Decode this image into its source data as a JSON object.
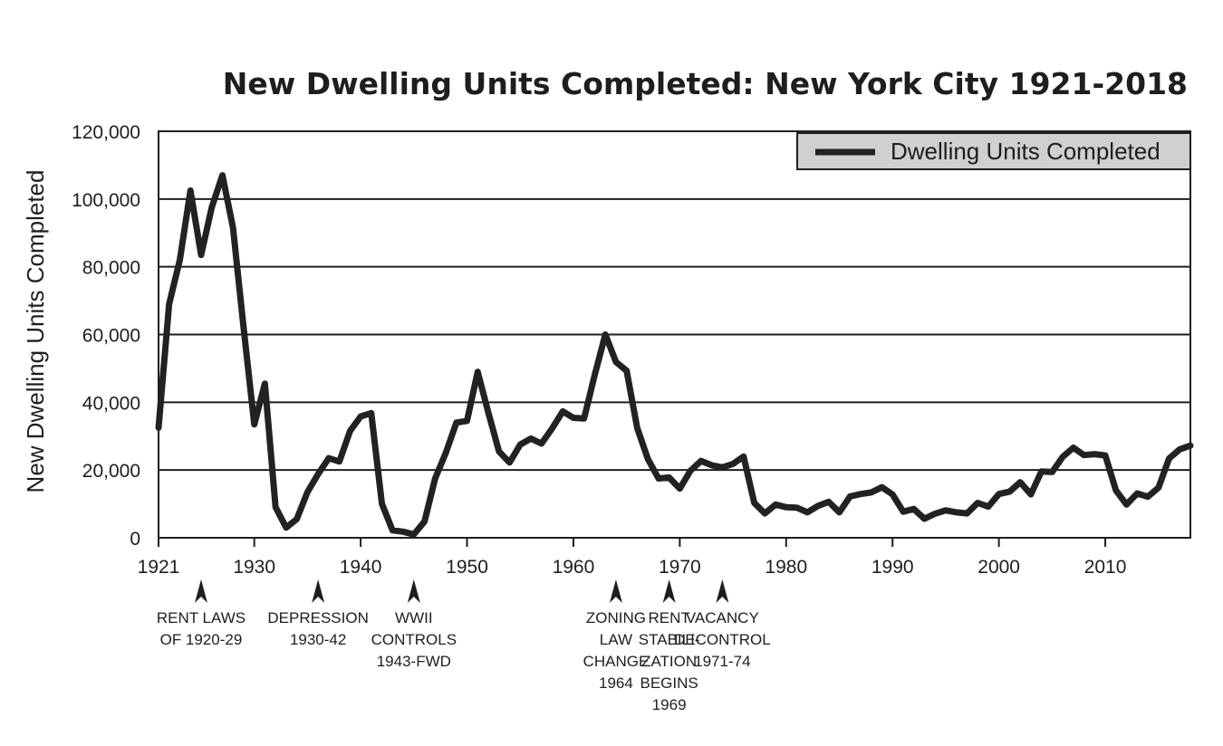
{
  "chart_data": {
    "type": "line",
    "title": "New Dwelling Units Completed: New York City 1921-2018",
    "xlabel": "",
    "ylabel": "New Dwelling Units Completed",
    "xlim": [
      1921,
      2018
    ],
    "ylim": [
      0,
      120000
    ],
    "x_ticks": [
      1921,
      1930,
      1940,
      1950,
      1960,
      1970,
      1980,
      1990,
      2000,
      2010
    ],
    "y_ticks": [
      {
        "value": 0,
        "label": "0"
      },
      {
        "value": 20000,
        "label": "20,000"
      },
      {
        "value": 40000,
        "label": "40,000"
      },
      {
        "value": 60000,
        "label": "60,000"
      },
      {
        "value": 80000,
        "label": "80,000"
      },
      {
        "value": 100000,
        "label": "100,000"
      },
      {
        "value": 120000,
        "label": "120,000"
      }
    ],
    "grid": "horizontal",
    "legend_position": "top-right",
    "line_color": "#222222",
    "series": [
      {
        "name": "Dwelling Units Completed",
        "x": [
          1921,
          1922,
          1923,
          1924,
          1925,
          1926,
          1927,
          1928,
          1929,
          1930,
          1931,
          1932,
          1933,
          1934,
          1935,
          1936,
          1937,
          1938,
          1939,
          1940,
          1941,
          1942,
          1943,
          1944,
          1945,
          1946,
          1947,
          1948,
          1949,
          1950,
          1951,
          1952,
          1953,
          1954,
          1955,
          1956,
          1957,
          1958,
          1959,
          1960,
          1961,
          1962,
          1963,
          1964,
          1965,
          1966,
          1967,
          1968,
          1969,
          1970,
          1971,
          1972,
          1973,
          1974,
          1975,
          1976,
          1977,
          1978,
          1979,
          1980,
          1981,
          1982,
          1983,
          1984,
          1985,
          1986,
          1987,
          1988,
          1989,
          1990,
          1991,
          1992,
          1993,
          1994,
          1995,
          1996,
          1997,
          1998,
          1999,
          2000,
          2001,
          2002,
          2003,
          2004,
          2005,
          2006,
          2007,
          2008,
          2009,
          2010,
          2011,
          2012,
          2013,
          2014,
          2015,
          2016,
          2017,
          2018
        ],
        "values": [
          32500,
          69000,
          82000,
          102500,
          83500,
          97500,
          107000,
          91500,
          62000,
          33500,
          45500,
          9000,
          3000,
          5500,
          13500,
          18800,
          23500,
          22500,
          31500,
          35800,
          36800,
          10000,
          2200,
          1800,
          1000,
          4800,
          17500,
          25000,
          34000,
          34500,
          49000,
          37000,
          25500,
          22200,
          27500,
          29300,
          27800,
          32300,
          37300,
          35400,
          35200,
          48000,
          60000,
          51900,
          49300,
          32400,
          23300,
          17500,
          17800,
          14500,
          19800,
          22700,
          21400,
          20800,
          21800,
          24000,
          10300,
          7200,
          9800,
          9000,
          8900,
          7500,
          9400,
          10600,
          7500,
          12200,
          12900,
          13400,
          14900,
          12800,
          7700,
          8500,
          5600,
          7100,
          8100,
          7500,
          7200,
          10300,
          9200,
          12900,
          13600,
          16400,
          12800,
          19600,
          19400,
          23900,
          26600,
          24400,
          24700,
          24300,
          14000,
          9800,
          13100,
          12100,
          14800,
          23400,
          26100,
          27200
        ]
      }
    ],
    "annotations": [
      {
        "x": 1925,
        "lines": [
          "RENT LAWS",
          "OF 1920-29"
        ]
      },
      {
        "x": 1936,
        "lines": [
          "DEPRESSION",
          "1930-42"
        ]
      },
      {
        "x": 1945,
        "lines": [
          "WWII",
          "CONTROLS",
          "1943-FWD"
        ]
      },
      {
        "x": 1964,
        "lines": [
          "ZONING",
          "LAW",
          "CHANGE",
          "1964"
        ]
      },
      {
        "x": 1969,
        "lines": [
          "RENT",
          "STABILI-",
          "ZATION",
          "BEGINS",
          "1969"
        ]
      },
      {
        "x": 1974,
        "lines": [
          "VACANCY",
          "DECONTROL",
          "1971-74"
        ]
      }
    ]
  }
}
